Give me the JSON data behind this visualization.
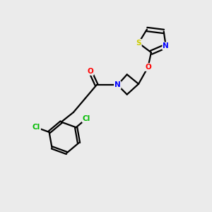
{
  "background_color": "#ebebeb",
  "bond_color": "#000000",
  "atom_colors": {
    "S": "#cccc00",
    "N": "#0000ff",
    "O": "#ff0000",
    "Cl": "#00bb00",
    "C": "#000000"
  },
  "figsize": [
    3.0,
    3.0
  ],
  "dpi": 100
}
